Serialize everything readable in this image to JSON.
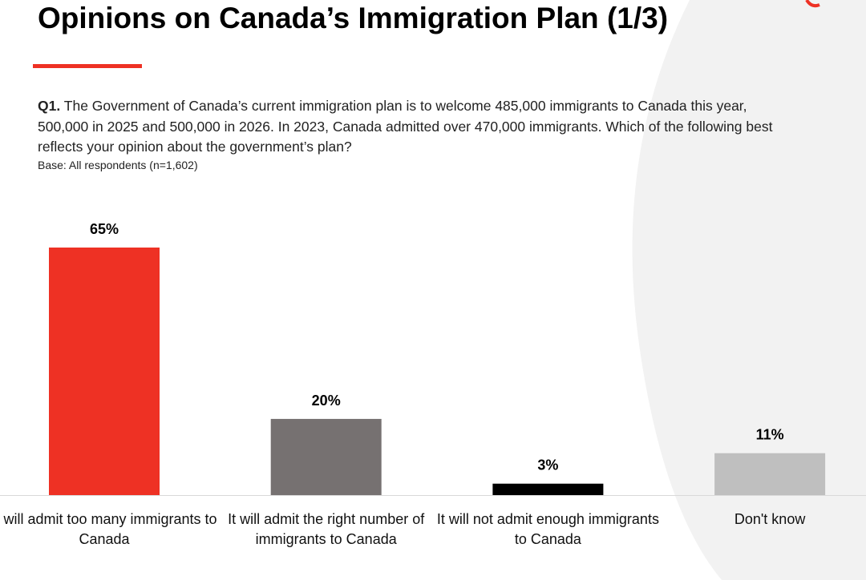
{
  "chart_data": {
    "type": "bar",
    "title": "Opinions on Canada’s Immigration Plan (1/3)",
    "question_label": "Q1.",
    "question": "The Government of Canada’s current immigration plan is to welcome 485,000 immigrants to Canada this year, 500,000 in 2025 and 500,000 in 2026. In 2023, Canada admitted over 470,000 immigrants. Which of the following best reflects your opinion about the government’s plan?",
    "base": "Base: All respondents (n=1,602)",
    "categories": [
      "It will admit too many immigrants to Canada",
      "It will admit the right number of immigrants to Canada",
      "It will not admit enough immigrants to Canada",
      "Don't know"
    ],
    "values": [
      65,
      20,
      3,
      11
    ],
    "value_labels": [
      "65%",
      "20%",
      "3%",
      "11%"
    ],
    "colors": [
      "#ee3124",
      "#767171",
      "#000000",
      "#bfbfbf"
    ]
  }
}
